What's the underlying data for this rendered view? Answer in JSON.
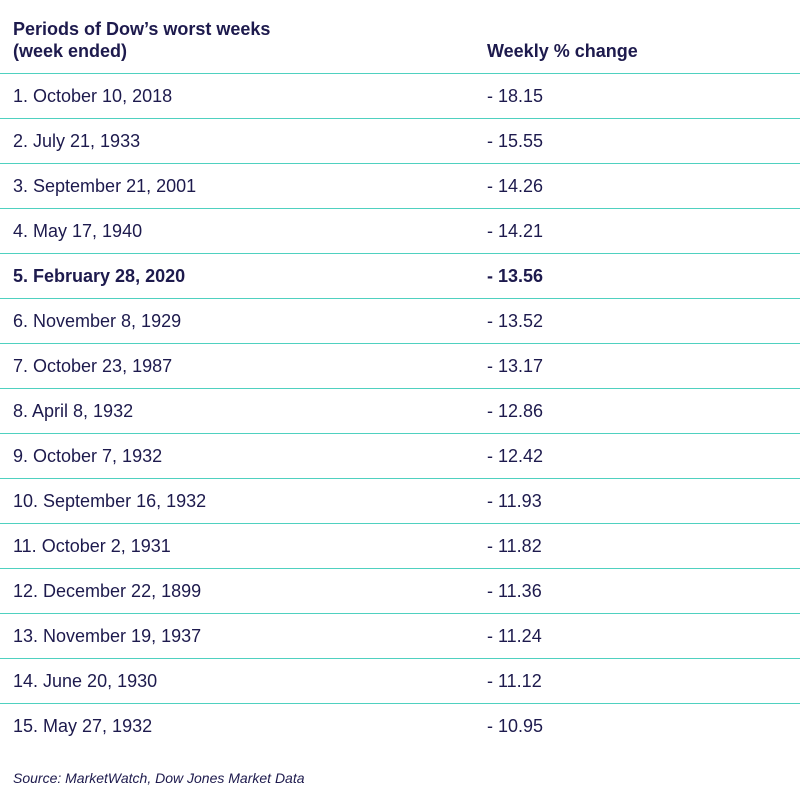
{
  "table": {
    "headers": {
      "period": "Periods of Dow’s worst weeks\n(week ended)",
      "change": "Weekly % change"
    },
    "rows": [
      {
        "period": "1. October 10, 2018",
        "change": "- 18.15",
        "bold": false
      },
      {
        "period": "2. July 21, 1933",
        "change": "- 15.55",
        "bold": false
      },
      {
        "period": "3. September 21, 2001",
        "change": "- 14.26",
        "bold": false
      },
      {
        "period": "4. May 17, 1940",
        "change": "- 14.21",
        "bold": false
      },
      {
        "period": "5. February 28, 2020",
        "change": "- 13.56",
        "bold": true
      },
      {
        "period": "6. November 8, 1929",
        "change": "- 13.52",
        "bold": false
      },
      {
        "period": "7. October 23, 1987",
        "change": "- 13.17",
        "bold": false
      },
      {
        "period": "8. April 8, 1932",
        "change": "- 12.86",
        "bold": false
      },
      {
        "period": "9. October 7, 1932",
        "change": "- 12.42",
        "bold": false
      },
      {
        "period": "10. September 16, 1932",
        "change": "- 11.93",
        "bold": false
      },
      {
        "period": "11. October 2, 1931",
        "change": "- 11.82",
        "bold": false
      },
      {
        "period": "12. December 22, 1899",
        "change": "- 11.36",
        "bold": false
      },
      {
        "period": "13. November 19, 1937",
        "change": "- 11.24",
        "bold": false
      },
      {
        "period": "14. June 20, 1930",
        "change": "- 11.12",
        "bold": false
      },
      {
        "period": "15. May 27, 1932",
        "change": "- 10.95",
        "bold": false
      }
    ]
  },
  "source": "Source: MarketWatch, Dow Jones Market Data",
  "colors": {
    "text": "#1d1a4d",
    "rule": "#4fd1c0"
  }
}
